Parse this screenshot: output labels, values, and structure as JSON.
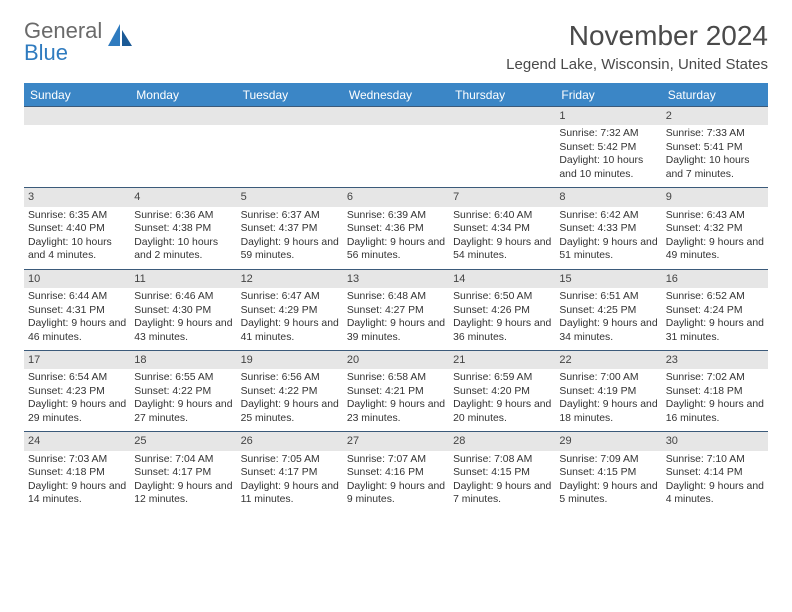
{
  "logo": {
    "text1": "General",
    "text2": "Blue"
  },
  "title": "November 2024",
  "location": "Legend Lake, Wisconsin, United States",
  "colors": {
    "header_bg": "#3b86c6",
    "header_text": "#ffffff",
    "daynum_bg": "#e6e6e6",
    "cell_border": "#3b5a7a",
    "logo_gray": "#6a6a6a",
    "logo_blue": "#2f7bbf"
  },
  "weekdays": [
    "Sunday",
    "Monday",
    "Tuesday",
    "Wednesday",
    "Thursday",
    "Friday",
    "Saturday"
  ],
  "grid": [
    [
      null,
      null,
      null,
      null,
      null,
      {
        "n": "1",
        "sr": "7:32 AM",
        "ss": "5:42 PM",
        "dl": "10 hours and 10 minutes."
      },
      {
        "n": "2",
        "sr": "7:33 AM",
        "ss": "5:41 PM",
        "dl": "10 hours and 7 minutes."
      }
    ],
    [
      {
        "n": "3",
        "sr": "6:35 AM",
        "ss": "4:40 PM",
        "dl": "10 hours and 4 minutes."
      },
      {
        "n": "4",
        "sr": "6:36 AM",
        "ss": "4:38 PM",
        "dl": "10 hours and 2 minutes."
      },
      {
        "n": "5",
        "sr": "6:37 AM",
        "ss": "4:37 PM",
        "dl": "9 hours and 59 minutes."
      },
      {
        "n": "6",
        "sr": "6:39 AM",
        "ss": "4:36 PM",
        "dl": "9 hours and 56 minutes."
      },
      {
        "n": "7",
        "sr": "6:40 AM",
        "ss": "4:34 PM",
        "dl": "9 hours and 54 minutes."
      },
      {
        "n": "8",
        "sr": "6:42 AM",
        "ss": "4:33 PM",
        "dl": "9 hours and 51 minutes."
      },
      {
        "n": "9",
        "sr": "6:43 AM",
        "ss": "4:32 PM",
        "dl": "9 hours and 49 minutes."
      }
    ],
    [
      {
        "n": "10",
        "sr": "6:44 AM",
        "ss": "4:31 PM",
        "dl": "9 hours and 46 minutes."
      },
      {
        "n": "11",
        "sr": "6:46 AM",
        "ss": "4:30 PM",
        "dl": "9 hours and 43 minutes."
      },
      {
        "n": "12",
        "sr": "6:47 AM",
        "ss": "4:29 PM",
        "dl": "9 hours and 41 minutes."
      },
      {
        "n": "13",
        "sr": "6:48 AM",
        "ss": "4:27 PM",
        "dl": "9 hours and 39 minutes."
      },
      {
        "n": "14",
        "sr": "6:50 AM",
        "ss": "4:26 PM",
        "dl": "9 hours and 36 minutes."
      },
      {
        "n": "15",
        "sr": "6:51 AM",
        "ss": "4:25 PM",
        "dl": "9 hours and 34 minutes."
      },
      {
        "n": "16",
        "sr": "6:52 AM",
        "ss": "4:24 PM",
        "dl": "9 hours and 31 minutes."
      }
    ],
    [
      {
        "n": "17",
        "sr": "6:54 AM",
        "ss": "4:23 PM",
        "dl": "9 hours and 29 minutes."
      },
      {
        "n": "18",
        "sr": "6:55 AM",
        "ss": "4:22 PM",
        "dl": "9 hours and 27 minutes."
      },
      {
        "n": "19",
        "sr": "6:56 AM",
        "ss": "4:22 PM",
        "dl": "9 hours and 25 minutes."
      },
      {
        "n": "20",
        "sr": "6:58 AM",
        "ss": "4:21 PM",
        "dl": "9 hours and 23 minutes."
      },
      {
        "n": "21",
        "sr": "6:59 AM",
        "ss": "4:20 PM",
        "dl": "9 hours and 20 minutes."
      },
      {
        "n": "22",
        "sr": "7:00 AM",
        "ss": "4:19 PM",
        "dl": "9 hours and 18 minutes."
      },
      {
        "n": "23",
        "sr": "7:02 AM",
        "ss": "4:18 PM",
        "dl": "9 hours and 16 minutes."
      }
    ],
    [
      {
        "n": "24",
        "sr": "7:03 AM",
        "ss": "4:18 PM",
        "dl": "9 hours and 14 minutes."
      },
      {
        "n": "25",
        "sr": "7:04 AM",
        "ss": "4:17 PM",
        "dl": "9 hours and 12 minutes."
      },
      {
        "n": "26",
        "sr": "7:05 AM",
        "ss": "4:17 PM",
        "dl": "9 hours and 11 minutes."
      },
      {
        "n": "27",
        "sr": "7:07 AM",
        "ss": "4:16 PM",
        "dl": "9 hours and 9 minutes."
      },
      {
        "n": "28",
        "sr": "7:08 AM",
        "ss": "4:15 PM",
        "dl": "9 hours and 7 minutes."
      },
      {
        "n": "29",
        "sr": "7:09 AM",
        "ss": "4:15 PM",
        "dl": "9 hours and 5 minutes."
      },
      {
        "n": "30",
        "sr": "7:10 AM",
        "ss": "4:14 PM",
        "dl": "9 hours and 4 minutes."
      }
    ]
  ],
  "labels": {
    "sunrise": "Sunrise: ",
    "sunset": "Sunset: ",
    "daylight": "Daylight: "
  }
}
